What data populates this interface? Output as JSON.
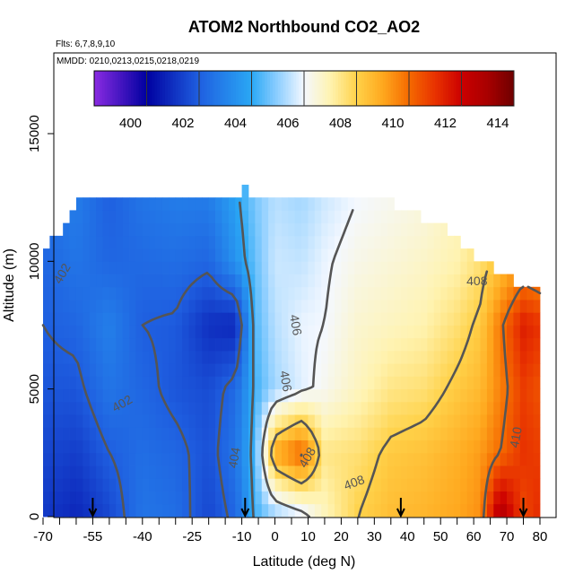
{
  "chart_data": {
    "type": "heatmap",
    "title": "ATOM2 Northbound CO2_AO2",
    "flights_text": "Flts: 6,7,8,9,10",
    "dates_text": "MMDD: 0210,0213,0215,0218,0219",
    "xlabel": "Latitude (deg N)",
    "ylabel": "Altitude (m)",
    "xlim": [
      -70,
      84
    ],
    "ylim": [
      0,
      17500
    ],
    "x_ticks": [
      -70,
      -55,
      -40,
      -25,
      -10,
      0,
      10,
      20,
      30,
      40,
      50,
      60,
      70,
      80
    ],
    "x_ticks_labeled": [
      -70,
      -55,
      -40,
      -25,
      -10,
      0,
      10,
      20,
      30,
      40,
      50,
      60,
      70,
      80
    ],
    "x_minor_ticks_every": 5,
    "y_ticks": [
      0,
      5000,
      10000,
      15000
    ],
    "colorbar": {
      "min": 398,
      "max": 414,
      "ticks": [
        400,
        402,
        404,
        406,
        408,
        410,
        412,
        414
      ],
      "stops": [
        {
          "v": 398,
          "c": "#8a2be2"
        },
        {
          "v": 400,
          "c": "#0000a0"
        },
        {
          "v": 402,
          "c": "#1f5fe0"
        },
        {
          "v": 404,
          "c": "#2aa8f5"
        },
        {
          "v": 405,
          "c": "#8fcfff"
        },
        {
          "v": 406,
          "c": "#f4f8ff"
        },
        {
          "v": 407,
          "c": "#fff3b0"
        },
        {
          "v": 408,
          "c": "#ffd24a"
        },
        {
          "v": 409,
          "c": "#ffa81e"
        },
        {
          "v": 410,
          "c": "#f56a00"
        },
        {
          "v": 411,
          "c": "#e83200"
        },
        {
          "v": 412,
          "c": "#cc0000"
        },
        {
          "v": 413,
          "c": "#a80000"
        },
        {
          "v": 414,
          "c": "#6e0000"
        }
      ]
    },
    "anchors": [
      {
        "lat": -70,
        "vals": [
          401.2,
          401.5,
          401.8,
          402.0,
          402.2,
          402.4
        ]
      },
      {
        "lat": -60,
        "vals": [
          400.8,
          401.3,
          401.8,
          402.2,
          402.6,
          402.8
        ]
      },
      {
        "lat": -50,
        "vals": [
          401.5,
          402.0,
          402.6,
          402.9,
          402.2,
          402.0
        ]
      },
      {
        "lat": -40,
        "vals": [
          402.6,
          402.4,
          402.2,
          402.0,
          402.3,
          402.6
        ]
      },
      {
        "lat": -30,
        "vals": [
          402.4,
          402.2,
          401.8,
          401.9,
          402.4,
          402.8
        ]
      },
      {
        "lat": -20,
        "vals": [
          401.5,
          401.7,
          401.6,
          401.0,
          402.2,
          402.8
        ]
      },
      {
        "lat": -12,
        "vals": [
          402.2,
          402.6,
          402.3,
          400.8,
          403.4,
          403.8
        ]
      },
      {
        "lat": -6,
        "vals": [
          404.2,
          404.4,
          404.2,
          404.4,
          404.6,
          404.8
        ]
      },
      {
        "lat": 0,
        "vals": [
          405.0,
          409.0,
          405.2,
          405.4,
          405.6,
          405.4
        ]
      },
      {
        "lat": 8,
        "vals": [
          405.6,
          410.2,
          405.8,
          405.9,
          405.5,
          405.2
        ]
      },
      {
        "lat": 15,
        "vals": [
          406.8,
          407.4,
          406.2,
          406.0,
          405.9,
          405.6
        ]
      },
      {
        "lat": 25,
        "vals": [
          408.0,
          407.6,
          406.8,
          406.6,
          406.3,
          406.0
        ]
      },
      {
        "lat": 35,
        "vals": [
          408.5,
          408.2,
          407.4,
          406.8,
          406.5,
          406.2
        ]
      },
      {
        "lat": 45,
        "vals": [
          408.7,
          408.4,
          407.6,
          407.0,
          406.7,
          406.4
        ]
      },
      {
        "lat": 55,
        "vals": [
          409.0,
          408.8,
          408.2,
          407.6,
          407.0,
          406.8
        ]
      },
      {
        "lat": 62,
        "vals": [
          409.4,
          409.2,
          408.6,
          408.2,
          407.6,
          407.2
        ]
      },
      {
        "lat": 68,
        "vals": [
          413.0,
          410.0,
          409.6,
          409.8,
          408.4,
          407.8
        ]
      },
      {
        "lat": 75,
        "vals": [
          410.6,
          411.0,
          410.8,
          411.4,
          409.2,
          408.4
        ]
      },
      {
        "lat": 80,
        "vals": [
          411.2,
          410.8,
          410.4,
          411.0,
          409.0,
          408.2
        ]
      }
    ],
    "anchor_altitudes": [
      0,
      2500,
      5000,
      7500,
      10000,
      12500
    ],
    "coverage": [
      {
        "lat": -70,
        "top": 10000
      },
      {
        "lat": -66,
        "top": 10800
      },
      {
        "lat": -62,
        "top": 11600
      },
      {
        "lat": -58,
        "top": 12500
      },
      {
        "lat": -10,
        "top": 12500
      },
      {
        "lat": -9,
        "top": 13000
      },
      {
        "lat": -8,
        "top": 12500
      },
      {
        "lat": 32,
        "top": 12200
      },
      {
        "lat": 40,
        "top": 11800
      },
      {
        "lat": 50,
        "top": 11200
      },
      {
        "lat": 58,
        "top": 10200
      },
      {
        "lat": 66,
        "top": 9600
      },
      {
        "lat": 72,
        "top": 9000
      },
      {
        "lat": 80,
        "top": 9000
      }
    ],
    "contour_labels": [
      {
        "text": "402",
        "lat": -64,
        "alt": 9500,
        "rot": -60
      },
      {
        "text": "402",
        "lat": -46,
        "alt": 4400,
        "rot": -30
      },
      {
        "text": "404",
        "lat": -12,
        "alt": 2300,
        "rot": -80
      },
      {
        "text": "406",
        "lat": 6,
        "alt": 7500,
        "rot": 80
      },
      {
        "text": "406",
        "lat": 3,
        "alt": 5300,
        "rot": 80
      },
      {
        "text": "408",
        "lat": 10,
        "alt": 2300,
        "rot": -60
      },
      {
        "text": "408",
        "lat": 24,
        "alt": 1300,
        "rot": -20
      },
      {
        "text": "408",
        "lat": 61,
        "alt": 9200,
        "rot": 0
      },
      {
        "text": "410",
        "lat": 73,
        "alt": 3100,
        "rot": -80
      }
    ],
    "flight_arrows": [
      -55,
      -9,
      38,
      75
    ]
  }
}
